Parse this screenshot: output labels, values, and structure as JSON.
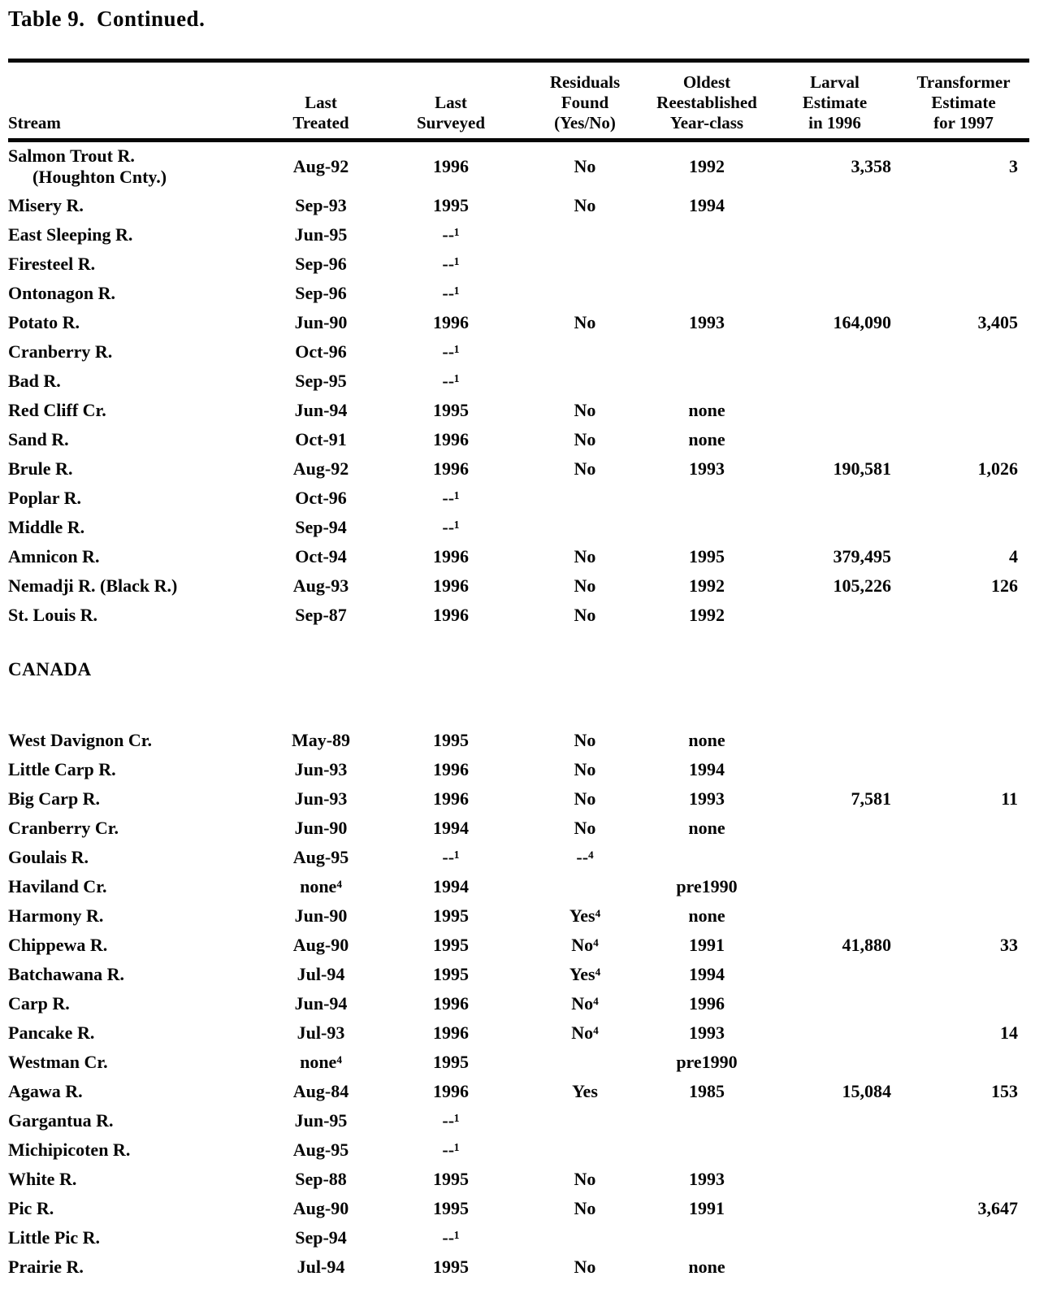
{
  "title": "Table 9.  Continued.",
  "table": {
    "columns": [
      {
        "id": "stream",
        "label": "Stream"
      },
      {
        "id": "treated",
        "label": "Last\nTreated"
      },
      {
        "id": "surveyed",
        "label": "Last\nSurveyed"
      },
      {
        "id": "residuals",
        "label": "Residuals\nFound\n(Yes/No)"
      },
      {
        "id": "oldest",
        "label": "Oldest\nReestablished\nYear-class"
      },
      {
        "id": "larval",
        "label": "Larval\nEstimate\nin 1996"
      },
      {
        "id": "transformer",
        "label": "Transformer\nEstimate\nfor 1997"
      }
    ],
    "section_label": "CANADA",
    "sections": [
      {
        "id": "us",
        "rows": [
          {
            "stream": "Salmon Trout R.",
            "stream2": "(Houghton Cnty.)",
            "treated": "Aug-92",
            "surveyed": "1996",
            "residuals": "No",
            "oldest": "1992",
            "larval": "3,358",
            "transformer": "3"
          },
          {
            "stream": "Misery R.",
            "treated": "Sep-93",
            "surveyed": "1995",
            "residuals": "No",
            "oldest": "1994"
          },
          {
            "stream": "East Sleeping R.",
            "treated": "Jun-95",
            "surveyed": "--¹"
          },
          {
            "stream": "Firesteel R.",
            "treated": "Sep-96",
            "surveyed": "--¹"
          },
          {
            "stream": "Ontonagon R.",
            "treated": "Sep-96",
            "surveyed": "--¹"
          },
          {
            "stream": "Potato R.",
            "treated": "Jun-90",
            "surveyed": "1996",
            "residuals": "No",
            "oldest": "1993",
            "larval": "164,090",
            "transformer": "3,405"
          },
          {
            "stream": "Cranberry R.",
            "treated": "Oct-96",
            "surveyed": "--¹"
          },
          {
            "stream": "Bad R.",
            "treated": "Sep-95",
            "surveyed": "--¹"
          },
          {
            "stream": "Red Cliff Cr.",
            "treated": "Jun-94",
            "surveyed": "1995",
            "residuals": "No",
            "oldest": "none"
          },
          {
            "stream": "Sand R.",
            "treated": "Oct-91",
            "surveyed": "1996",
            "residuals": "No",
            "oldest": "none"
          },
          {
            "stream": "Brule R.",
            "treated": "Aug-92",
            "surveyed": "1996",
            "residuals": "No",
            "oldest": "1993",
            "larval": "190,581",
            "transformer": "1,026"
          },
          {
            "stream": "Poplar R.",
            "treated": "Oct-96",
            "surveyed": "--¹"
          },
          {
            "stream": "Middle R.",
            "treated": "Sep-94",
            "surveyed": "--¹"
          },
          {
            "stream": "Amnicon R.",
            "treated": "Oct-94",
            "surveyed": "1996",
            "residuals": "No",
            "oldest": "1995",
            "larval": "379,495",
            "transformer": "4"
          },
          {
            "stream": "Nemadji R. (Black R.)",
            "treated": "Aug-93",
            "surveyed": "1996",
            "residuals": "No",
            "oldest": "1992",
            "larval": "105,226",
            "transformer": "126"
          },
          {
            "stream": "St. Louis R.",
            "treated": "Sep-87",
            "surveyed": "1996",
            "residuals": "No",
            "oldest": "1992"
          }
        ]
      },
      {
        "id": "canada",
        "rows": [
          {
            "stream": "West Davignon Cr.",
            "treated": "May-89",
            "surveyed": "1995",
            "residuals": "No",
            "oldest": "none"
          },
          {
            "stream": "Little Carp R.",
            "treated": "Jun-93",
            "surveyed": "1996",
            "residuals": "No",
            "oldest": "1994"
          },
          {
            "stream": "Big Carp R.",
            "treated": "Jun-93",
            "surveyed": "1996",
            "residuals": "No",
            "oldest": "1993",
            "larval": "7,581",
            "transformer": "11"
          },
          {
            "stream": "Cranberry Cr.",
            "treated": "Jun-90",
            "surveyed": "1994",
            "residuals": "No",
            "oldest": "none"
          },
          {
            "stream": "Goulais R.",
            "treated": "Aug-95",
            "surveyed": "--¹",
            "residuals": "--⁴"
          },
          {
            "stream": "Haviland Cr.",
            "treated": "none⁴",
            "surveyed": "1994",
            "oldest": "pre1990"
          },
          {
            "stream": "Harmony R.",
            "treated": "Jun-90",
            "surveyed": "1995",
            "residuals": "Yes⁴",
            "oldest": "none"
          },
          {
            "stream": "Chippewa R.",
            "treated": "Aug-90",
            "surveyed": "1995",
            "residuals": "No⁴",
            "oldest": "1991",
            "larval": "41,880",
            "transformer": "33"
          },
          {
            "stream": "Batchawana R.",
            "treated": "Jul-94",
            "surveyed": "1995",
            "residuals": "Yes⁴",
            "oldest": "1994"
          },
          {
            "stream": "Carp R.",
            "treated": "Jun-94",
            "surveyed": "1996",
            "residuals": "No⁴",
            "oldest": "1996"
          },
          {
            "stream": "Pancake R.",
            "treated": "Jul-93",
            "surveyed": "1996",
            "residuals": "No⁴",
            "oldest": "1993",
            "transformer": "14"
          },
          {
            "stream": "Westman Cr.",
            "treated": "none⁴",
            "surveyed": "1995",
            "oldest": "pre1990"
          },
          {
            "stream": "Agawa R.",
            "treated": "Aug-84",
            "surveyed": "1996",
            "residuals": "Yes",
            "oldest": "1985",
            "larval": "15,084",
            "transformer": "153"
          },
          {
            "stream": "Gargantua R.",
            "treated": "Jun-95",
            "surveyed": "--¹"
          },
          {
            "stream": "Michipicoten R.",
            "treated": "Aug-95",
            "surveyed": "--¹"
          },
          {
            "stream": "White R.",
            "treated": "Sep-88",
            "surveyed": "1995",
            "residuals": "No",
            "oldest": "1993"
          },
          {
            "stream": "Pic R.",
            "treated": "Aug-90",
            "surveyed": "1995",
            "residuals": "No",
            "oldest": "1991",
            "transformer": "3,647"
          },
          {
            "stream": "Little Pic R.",
            "treated": "Sep-94",
            "surveyed": "--¹"
          },
          {
            "stream": "Prairie R.",
            "treated": "Jul-94",
            "surveyed": "1995",
            "residuals": "No",
            "oldest": "none"
          }
        ]
      }
    ]
  }
}
